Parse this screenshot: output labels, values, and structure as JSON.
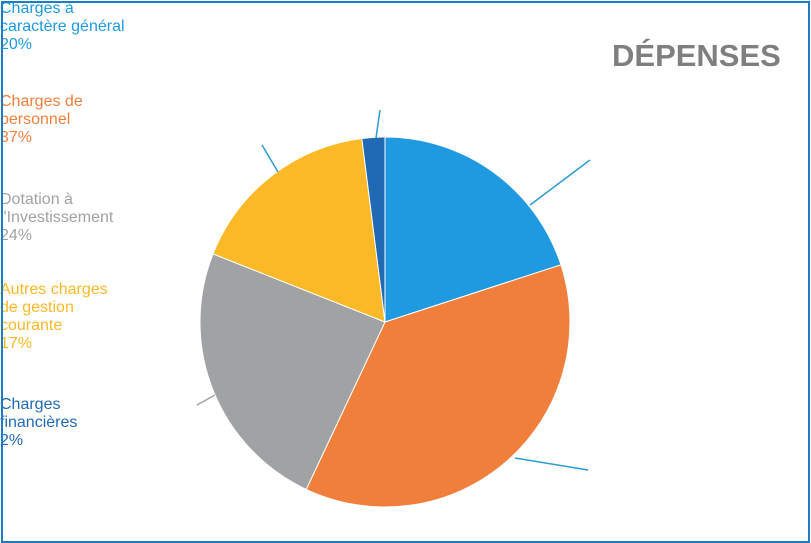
{
  "chart_data": {
    "type": "pie",
    "title": "DÉPENSES",
    "categories": [
      "Charges à caractère général",
      "Charges de personnel",
      "Dotation à l'Investissement",
      "Autres charges de gestion courante",
      "Charges financières"
    ],
    "values": [
      20,
      37,
      24,
      17,
      2
    ],
    "value_labels": [
      "20%",
      "37%",
      "24%",
      "17%",
      "2%"
    ],
    "colors": [
      "#1f9ae0",
      "#f07f3c",
      "#a0a2a4",
      "#fbb827",
      "#1f6ab3"
    ]
  }
}
